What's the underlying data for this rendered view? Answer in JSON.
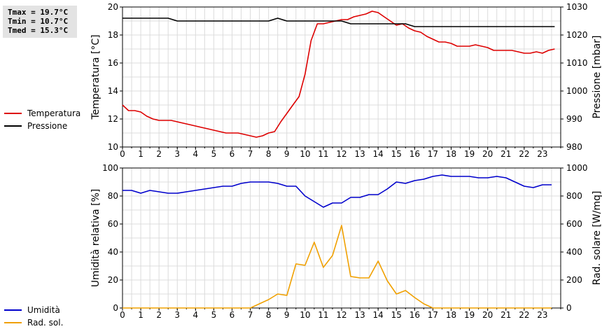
{
  "stats": {
    "tmax": "Tmax = 19.7°C",
    "tmin": "Tmin = 10.7°C",
    "tmed": "Tmed = 15.3°C"
  },
  "chart_data": [
    {
      "type": "line",
      "xlabel": "",
      "x_ticks": [
        "0",
        "1",
        "2",
        "3",
        "4",
        "5",
        "6",
        "7",
        "8",
        "9",
        "10",
        "11",
        "12",
        "13",
        "14",
        "15",
        "16",
        "17",
        "18",
        "19",
        "20",
        "21",
        "22",
        "23"
      ],
      "xlim": [
        0,
        24
      ],
      "grid": true,
      "legend_position": "left",
      "y_left": {
        "label": "Temperatura [°C]",
        "lim": [
          10,
          20
        ],
        "ticks": [
          "10",
          "12",
          "14",
          "16",
          "18",
          "20"
        ]
      },
      "y_right": {
        "label": "Pressione [mbar]",
        "lim": [
          980,
          1030
        ],
        "ticks": [
          "980",
          "990",
          "1000",
          "1010",
          "1020",
          "1030"
        ]
      },
      "series": [
        {
          "name": "Temperatura",
          "axis": "left",
          "color": "#dd0000",
          "points": [
            [
              0,
              13.0
            ],
            [
              0.33,
              12.6
            ],
            [
              0.67,
              12.6
            ],
            [
              1,
              12.5
            ],
            [
              1.33,
              12.2
            ],
            [
              1.67,
              12.0
            ],
            [
              2,
              11.9
            ],
            [
              2.33,
              11.9
            ],
            [
              2.67,
              11.9
            ],
            [
              3,
              11.8
            ],
            [
              3.33,
              11.7
            ],
            [
              3.67,
              11.6
            ],
            [
              4,
              11.5
            ],
            [
              4.33,
              11.4
            ],
            [
              4.67,
              11.3
            ],
            [
              5,
              11.2
            ],
            [
              5.33,
              11.1
            ],
            [
              5.67,
              11.0
            ],
            [
              6,
              11.0
            ],
            [
              6.33,
              11.0
            ],
            [
              6.67,
              10.9
            ],
            [
              7,
              10.8
            ],
            [
              7.33,
              10.7
            ],
            [
              7.67,
              10.8
            ],
            [
              8,
              11.0
            ],
            [
              8.33,
              11.1
            ],
            [
              8.67,
              11.8
            ],
            [
              9,
              12.4
            ],
            [
              9.33,
              13.0
            ],
            [
              9.67,
              13.6
            ],
            [
              10,
              15.2
            ],
            [
              10.33,
              17.6
            ],
            [
              10.67,
              18.8
            ],
            [
              11,
              18.8
            ],
            [
              11.33,
              18.9
            ],
            [
              11.67,
              19.0
            ],
            [
              12,
              19.1
            ],
            [
              12.33,
              19.1
            ],
            [
              12.67,
              19.3
            ],
            [
              13,
              19.4
            ],
            [
              13.33,
              19.5
            ],
            [
              13.67,
              19.7
            ],
            [
              14,
              19.6
            ],
            [
              14.33,
              19.3
            ],
            [
              14.67,
              19.0
            ],
            [
              15,
              18.7
            ],
            [
              15.33,
              18.8
            ],
            [
              15.67,
              18.5
            ],
            [
              16,
              18.3
            ],
            [
              16.33,
              18.2
            ],
            [
              16.67,
              17.9
            ],
            [
              17,
              17.7
            ],
            [
              17.33,
              17.5
            ],
            [
              17.67,
              17.5
            ],
            [
              18,
              17.4
            ],
            [
              18.33,
              17.2
            ],
            [
              18.67,
              17.2
            ],
            [
              19,
              17.2
            ],
            [
              19.33,
              17.3
            ],
            [
              19.67,
              17.2
            ],
            [
              20,
              17.1
            ],
            [
              20.33,
              16.9
            ],
            [
              20.67,
              16.9
            ],
            [
              21,
              16.9
            ],
            [
              21.33,
              16.9
            ],
            [
              21.67,
              16.8
            ],
            [
              22,
              16.7
            ],
            [
              22.33,
              16.7
            ],
            [
              22.67,
              16.8
            ],
            [
              23,
              16.7
            ],
            [
              23.33,
              16.9
            ],
            [
              23.67,
              17.0
            ]
          ]
        },
        {
          "name": "Pressione",
          "axis": "right",
          "color": "#000000",
          "points": [
            [
              0,
              1026
            ],
            [
              1,
              1026
            ],
            [
              2,
              1026
            ],
            [
              2.5,
              1026
            ],
            [
              3,
              1025
            ],
            [
              4,
              1025
            ],
            [
              5,
              1025
            ],
            [
              6,
              1025
            ],
            [
              7,
              1025
            ],
            [
              8,
              1025
            ],
            [
              8.5,
              1026
            ],
            [
              9,
              1025
            ],
            [
              10,
              1025
            ],
            [
              11,
              1025
            ],
            [
              12,
              1025
            ],
            [
              12.5,
              1024
            ],
            [
              13,
              1024
            ],
            [
              14,
              1024
            ],
            [
              15,
              1024
            ],
            [
              15.5,
              1024
            ],
            [
              16,
              1023
            ],
            [
              17,
              1023
            ],
            [
              18,
              1023
            ],
            [
              19,
              1023
            ],
            [
              20,
              1023
            ],
            [
              21,
              1023
            ],
            [
              22,
              1023
            ],
            [
              23,
              1023
            ],
            [
              23.67,
              1023
            ]
          ]
        }
      ]
    },
    {
      "type": "line",
      "xlabel": "",
      "x_ticks": [
        "0",
        "1",
        "2",
        "3",
        "4",
        "5",
        "6",
        "7",
        "8",
        "9",
        "10",
        "11",
        "12",
        "13",
        "14",
        "15",
        "16",
        "17",
        "18",
        "19",
        "20",
        "21",
        "22",
        "23"
      ],
      "xlim": [
        0,
        24
      ],
      "grid": true,
      "legend_position": "left",
      "y_left": {
        "label": "Umidità relativa [%]",
        "lim": [
          0,
          100
        ],
        "ticks": [
          "0",
          "20",
          "40",
          "60",
          "80",
          "100"
        ]
      },
      "y_right": {
        "label": "Rad. solare [W/mq]",
        "lim": [
          0,
          1000
        ],
        "ticks": [
          "0",
          "200",
          "400",
          "600",
          "800",
          "1000"
        ]
      },
      "series": [
        {
          "name": "Umidità",
          "axis": "left",
          "color": "#0000cc",
          "points": [
            [
              0,
              84
            ],
            [
              0.5,
              84
            ],
            [
              1,
              82
            ],
            [
              1.5,
              84
            ],
            [
              2,
              83
            ],
            [
              2.5,
              82
            ],
            [
              3,
              82
            ],
            [
              3.5,
              83
            ],
            [
              4,
              84
            ],
            [
              4.5,
              85
            ],
            [
              5,
              86
            ],
            [
              5.5,
              87
            ],
            [
              6,
              87
            ],
            [
              6.5,
              89
            ],
            [
              7,
              90
            ],
            [
              7.5,
              90
            ],
            [
              8,
              90
            ],
            [
              8.5,
              89
            ],
            [
              9,
              87
            ],
            [
              9.5,
              87
            ],
            [
              10,
              80
            ],
            [
              10.5,
              76
            ],
            [
              11,
              72
            ],
            [
              11.5,
              75
            ],
            [
              12,
              75
            ],
            [
              12.5,
              79
            ],
            [
              13,
              79
            ],
            [
              13.5,
              81
            ],
            [
              14,
              81
            ],
            [
              14.5,
              85
            ],
            [
              15,
              90
            ],
            [
              15.5,
              89
            ],
            [
              16,
              91
            ],
            [
              16.5,
              92
            ],
            [
              17,
              94
            ],
            [
              17.5,
              95
            ],
            [
              18,
              94
            ],
            [
              18.5,
              94
            ],
            [
              19,
              94
            ],
            [
              19.5,
              93
            ],
            [
              20,
              93
            ],
            [
              20.5,
              94
            ],
            [
              21,
              93
            ],
            [
              21.5,
              90
            ],
            [
              22,
              87
            ],
            [
              22.5,
              86
            ],
            [
              23,
              88
            ],
            [
              23.5,
              88
            ]
          ]
        },
        {
          "name": "Rad. sol.",
          "axis": "right",
          "color": "#f0a000",
          "points": [
            [
              0,
              0
            ],
            [
              1,
              0
            ],
            [
              2,
              0
            ],
            [
              3,
              0
            ],
            [
              4,
              0
            ],
            [
              5,
              0
            ],
            [
              6,
              0
            ],
            [
              7,
              0
            ],
            [
              7.5,
              30
            ],
            [
              8,
              60
            ],
            [
              8.5,
              100
            ],
            [
              9,
              90
            ],
            [
              9.5,
              315
            ],
            [
              10,
              305
            ],
            [
              10.5,
              470
            ],
            [
              11,
              290
            ],
            [
              11.5,
              375
            ],
            [
              12,
              590
            ],
            [
              12.5,
              225
            ],
            [
              13,
              215
            ],
            [
              13.5,
              215
            ],
            [
              14,
              335
            ],
            [
              14.5,
              195
            ],
            [
              15,
              100
            ],
            [
              15.5,
              125
            ],
            [
              16,
              75
            ],
            [
              16.5,
              30
            ],
            [
              17,
              0
            ],
            [
              18,
              0
            ],
            [
              19,
              0
            ],
            [
              20,
              0
            ],
            [
              21,
              0
            ],
            [
              22,
              0
            ],
            [
              23,
              0
            ],
            [
              23.5,
              0
            ]
          ]
        }
      ]
    }
  ]
}
